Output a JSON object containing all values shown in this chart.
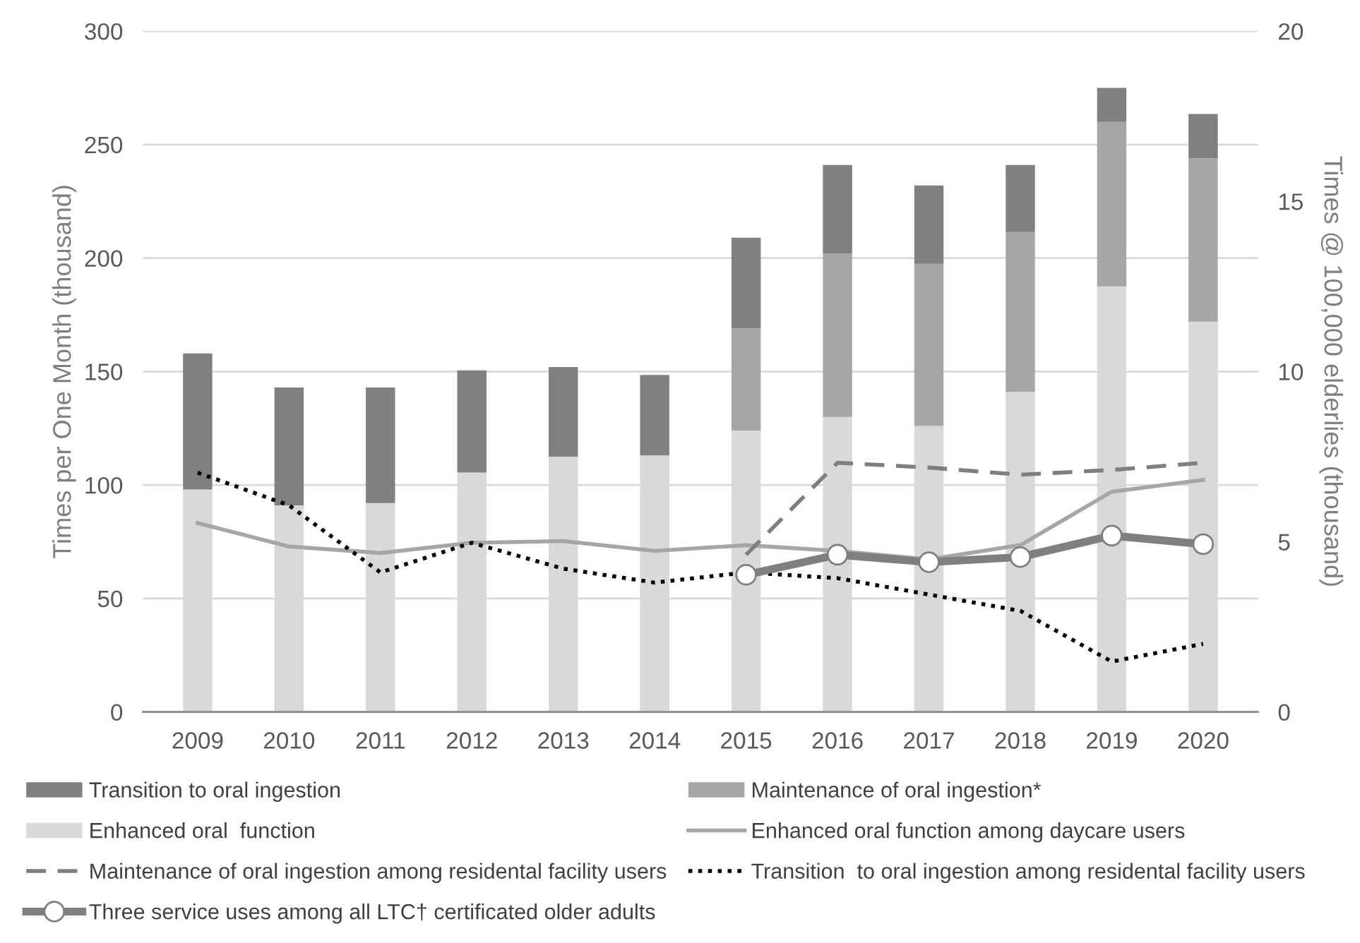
{
  "chart_data": {
    "type": "bar",
    "stacked": true,
    "ylabel": "Times per One Month (thousand)",
    "y2label": "Times @ 100,000 elderlies (thousand)",
    "categories": [
      "2009",
      "2010",
      "2011",
      "2012",
      "2013",
      "2014",
      "2015",
      "2016",
      "2017",
      "2018",
      "2019",
      "2020"
    ],
    "series": [
      {
        "name": "Enhanced oral  function",
        "color": "#d9d9d9",
        "values": [
          98,
          91,
          92,
          105.5,
          112.5,
          113,
          124,
          130,
          126,
          141,
          187.5,
          172
        ]
      },
      {
        "name": "Maintenance of oral ingestion*",
        "color": "#a6a6a6",
        "values": [
          null,
          null,
          null,
          null,
          null,
          null,
          45,
          72,
          71.5,
          70.5,
          72.5,
          72
        ]
      },
      {
        "name": "Transition to oral ingestion",
        "color": "#808080",
        "values": [
          60,
          52,
          51,
          45,
          39.5,
          35.5,
          40,
          39,
          34.5,
          29.5,
          15,
          19.5
        ]
      },
      {
        "name": "Enhanced oral function among daycare users",
        "type": "line",
        "axis": "y2",
        "color": "#a6a6a6",
        "line_style": "solid",
        "marker": "none",
        "values": [
          5.55,
          4.86,
          4.67,
          4.97,
          5.02,
          4.73,
          4.9,
          4.73,
          4.48,
          4.9,
          6.47,
          6.82
        ]
      },
      {
        "name": "Maintenance of oral ingestion among residental facility users",
        "type": "line",
        "axis": "y2",
        "color": "#7f7f7f",
        "line_style": "dashed",
        "marker": "none",
        "values": [
          null,
          null,
          null,
          null,
          null,
          null,
          4.62,
          7.32,
          7.18,
          6.97,
          7.11,
          7.32
        ]
      },
      {
        "name": "Transition  to oral ingestion among residental facility users",
        "type": "line",
        "axis": "y2",
        "color": "#000000",
        "line_style": "dotted",
        "marker": "none",
        "values": [
          7.03,
          6.07,
          4.1,
          4.97,
          4.21,
          3.8,
          4.1,
          3.93,
          3.45,
          2.97,
          1.48,
          2.0
        ]
      },
      {
        "name": "Three service uses among all LTC† certificated older adults",
        "type": "line",
        "axis": "y2",
        "color": "#7f7f7f",
        "line_style": "solid",
        "marker": "circle",
        "values": [
          null,
          null,
          null,
          null,
          null,
          null,
          4.03,
          4.62,
          4.4,
          4.55,
          5.18,
          4.93
        ]
      }
    ],
    "ylim": [
      0,
      300
    ],
    "yticks": [
      0,
      50,
      100,
      150,
      200,
      250,
      300
    ],
    "y2lim": [
      0,
      20
    ],
    "y2ticks": [
      0,
      5,
      10,
      15,
      20
    ],
    "grid": "y",
    "legend": "bottom"
  }
}
